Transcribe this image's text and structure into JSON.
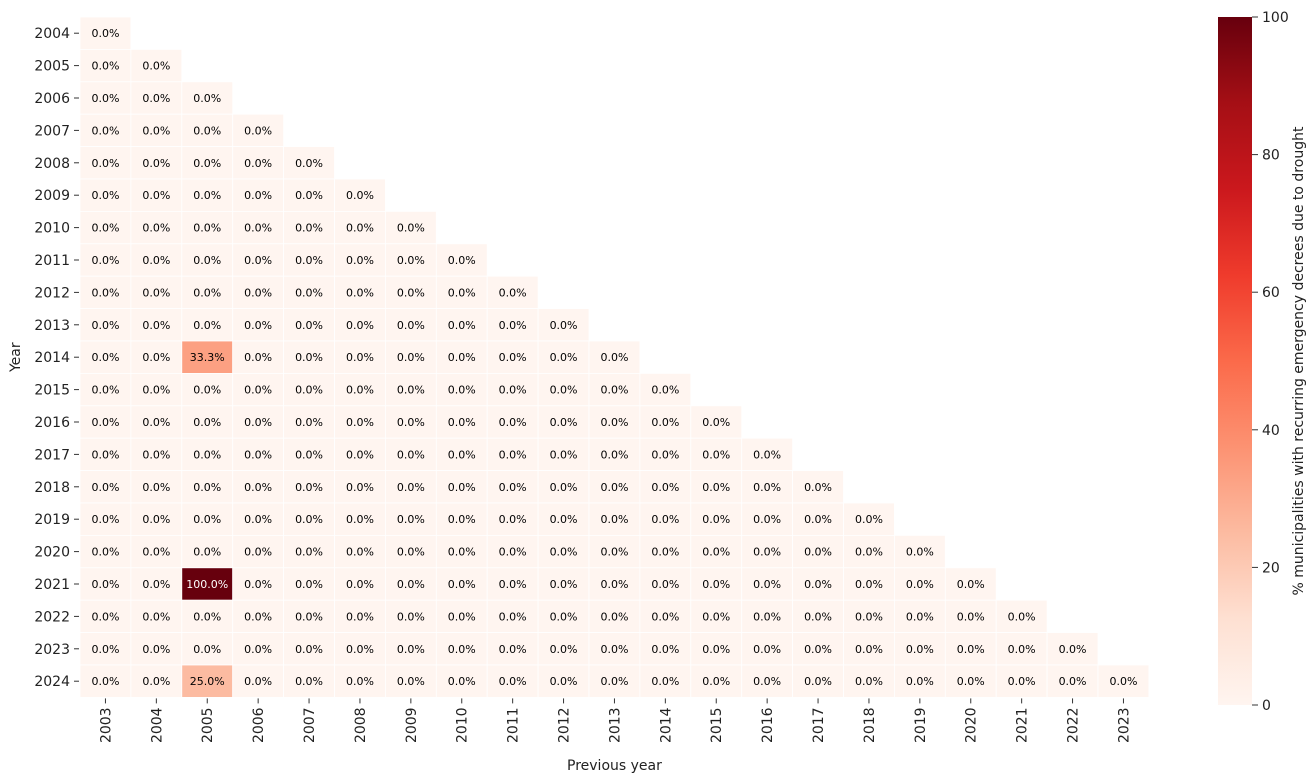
{
  "chart_data": {
    "type": "heatmap",
    "title": "",
    "xlabel": "Previous year",
    "ylabel": "Year",
    "x_categories": [
      "2003",
      "2004",
      "2005",
      "2006",
      "2007",
      "2008",
      "2009",
      "2010",
      "2011",
      "2012",
      "2013",
      "2014",
      "2015",
      "2016",
      "2017",
      "2018",
      "2019",
      "2020",
      "2021",
      "2022",
      "2023"
    ],
    "y_categories": [
      "2004",
      "2005",
      "2006",
      "2007",
      "2008",
      "2009",
      "2010",
      "2011",
      "2012",
      "2013",
      "2014",
      "2015",
      "2016",
      "2017",
      "2018",
      "2019",
      "2020",
      "2021",
      "2022",
      "2023",
      "2024"
    ],
    "mask": "upper-triangle",
    "default_value": 0,
    "nonzero_cells": [
      {
        "year": "2014",
        "previous_year": "2005",
        "value": 33.3
      },
      {
        "year": "2021",
        "previous_year": "2005",
        "value": 100.0
      },
      {
        "year": "2024",
        "previous_year": "2005",
        "value": 25.0
      }
    ],
    "value_format": "0.0%",
    "colorbar": {
      "label": "% municipalities with recurring emergency decrees due to drought",
      "range": [
        0,
        100
      ],
      "ticks": [
        0,
        20,
        40,
        60,
        80,
        100
      ],
      "colormap": "Reds",
      "colors": [
        "#fff5f0",
        "#fee0d2",
        "#fcbba1",
        "#fc9272",
        "#fb6a4a",
        "#ef3b2c",
        "#cb181d",
        "#a50f15",
        "#67000d"
      ]
    },
    "cell_gridline_color": "#ffffff",
    "legend": "none"
  }
}
